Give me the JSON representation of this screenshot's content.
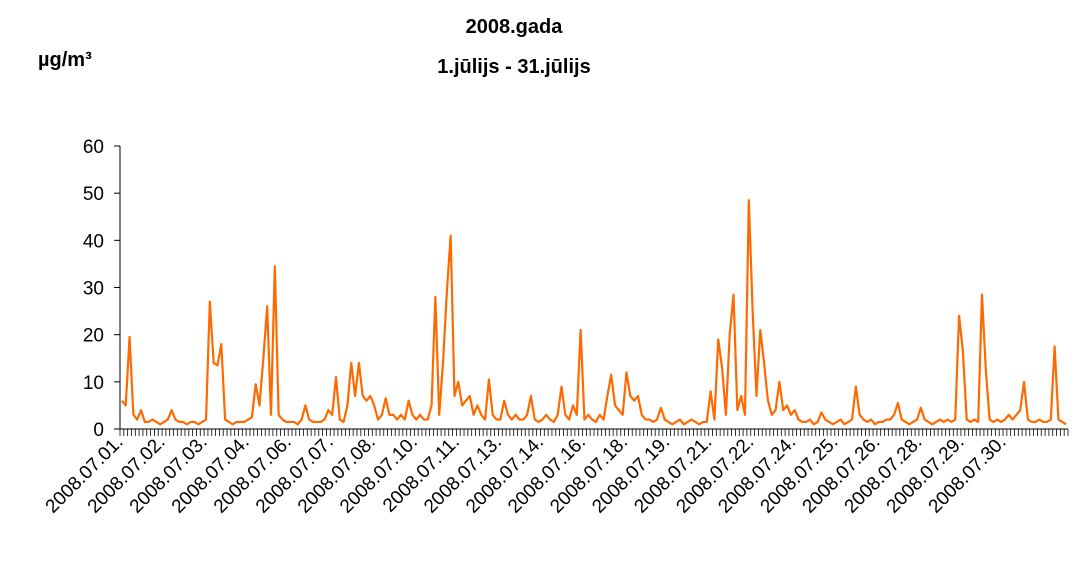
{
  "chart_data": {
    "type": "line",
    "title": "2008.gada",
    "subtitle": "1.jūlijs - 31.jūlijs",
    "y_label": "µg/m³",
    "color": "#ff6a00",
    "ylim": [
      0,
      60
    ],
    "yticks": [
      0,
      10,
      20,
      30,
      40,
      50,
      60
    ],
    "grid": false,
    "categories": [
      "2008.07.01.",
      null,
      null,
      null,
      null,
      null,
      null,
      null,
      null,
      null,
      null,
      "2008.07.02.",
      null,
      null,
      null,
      null,
      null,
      null,
      null,
      null,
      null,
      null,
      "2008.07.03.",
      null,
      null,
      null,
      null,
      null,
      null,
      null,
      null,
      null,
      null,
      "2008.07.04.",
      null,
      null,
      null,
      null,
      null,
      null,
      null,
      null,
      null,
      null,
      "2008.07.06.",
      null,
      null,
      null,
      null,
      null,
      null,
      null,
      null,
      null,
      null,
      "2008.07.07.",
      null,
      null,
      null,
      null,
      null,
      null,
      null,
      null,
      null,
      null,
      "2008.07.08.",
      null,
      null,
      null,
      null,
      null,
      null,
      null,
      null,
      null,
      null,
      "2008.07.10.",
      null,
      null,
      null,
      null,
      null,
      null,
      null,
      null,
      null,
      null,
      "2008.07.11.",
      null,
      null,
      null,
      null,
      null,
      null,
      null,
      null,
      null,
      null,
      "2008.07.13.",
      null,
      null,
      null,
      null,
      null,
      null,
      null,
      null,
      null,
      null,
      "2008.07.14.",
      null,
      null,
      null,
      null,
      null,
      null,
      null,
      null,
      null,
      null,
      "2008.07.16.",
      null,
      null,
      null,
      null,
      null,
      null,
      null,
      null,
      null,
      null,
      "2008.07.18.",
      null,
      null,
      null,
      null,
      null,
      null,
      null,
      null,
      null,
      null,
      "2008.07.19.",
      null,
      null,
      null,
      null,
      null,
      null,
      null,
      null,
      null,
      null,
      "2008.07.21.",
      null,
      null,
      null,
      null,
      null,
      null,
      null,
      null,
      null,
      null,
      "2008.07.22.",
      null,
      null,
      null,
      null,
      null,
      null,
      null,
      null,
      null,
      null,
      "2008.07.24.",
      null,
      null,
      null,
      null,
      null,
      null,
      null,
      null,
      null,
      null,
      "2008.07.25.",
      null,
      null,
      null,
      null,
      null,
      null,
      null,
      null,
      null,
      null,
      "2008.07.26.",
      null,
      null,
      null,
      null,
      null,
      null,
      null,
      null,
      null,
      null,
      "2008.07.28.",
      null,
      null,
      null,
      null,
      null,
      null,
      null,
      null,
      null,
      null,
      "2008.07.29.",
      null,
      null,
      null,
      null,
      null,
      null,
      null,
      null,
      null,
      null,
      "2008.07.30.",
      null,
      null,
      null,
      null,
      null,
      null,
      null,
      null,
      null,
      null,
      null,
      null,
      null,
      null,
      null,
      null
    ],
    "values": [
      6,
      5,
      19.5,
      3,
      2,
      4,
      1.5,
      1.5,
      2,
      1.5,
      1,
      1.5,
      2,
      4,
      2,
      1.5,
      1.5,
      1,
      1.5,
      1.5,
      1,
      1.5,
      2,
      27,
      14,
      13.5,
      18,
      2,
      1.5,
      1,
      1.5,
      1.5,
      1.5,
      2,
      2.5,
      9.5,
      5,
      15,
      26,
      3,
      34.5,
      3,
      2,
      1.5,
      1.5,
      1.5,
      1,
      2,
      5,
      2,
      1.5,
      1.5,
      1.5,
      2,
      4,
      3,
      11,
      2,
      1.5,
      5,
      14,
      7,
      14,
      7,
      6,
      7,
      5,
      2,
      3,
      6.5,
      3,
      3,
      2,
      3,
      2,
      6,
      3,
      2,
      3,
      2,
      2,
      5,
      28,
      3,
      14,
      29,
      41,
      7,
      10,
      5,
      6,
      7,
      3,
      5,
      3,
      2,
      10.5,
      3,
      2,
      2,
      6,
      3,
      2,
      3,
      2,
      2,
      3,
      7,
      2,
      1.5,
      2,
      3,
      2,
      1.5,
      3,
      9,
      3,
      2,
      5,
      3,
      21,
      2,
      3,
      2,
      1.5,
      3,
      2,
      7,
      11.5,
      5,
      4,
      3,
      12,
      7,
      6,
      7,
      3,
      2,
      2,
      1.5,
      2,
      4.5,
      2,
      1.5,
      1,
      1.5,
      2,
      1,
      1.5,
      2,
      1.5,
      1,
      1.5,
      1.5,
      8,
      2,
      19,
      13,
      3,
      20,
      28.5,
      4,
      7,
      3,
      48.5,
      25,
      7,
      21,
      14,
      6,
      3,
      4,
      10,
      4,
      5,
      3,
      4,
      2,
      1.5,
      1.5,
      2,
      1,
      1.5,
      3.5,
      2,
      1.5,
      1,
      1.5,
      2,
      1,
      1.5,
      2,
      9,
      3,
      2,
      1.5,
      2,
      1,
      1.5,
      1.5,
      2,
      2,
      3,
      5.5,
      2,
      1.5,
      1,
      1.5,
      2,
      4.5,
      2,
      1.5,
      1,
      1.5,
      2,
      1.5,
      2,
      1.5,
      2,
      24,
      16.5,
      2,
      1.5,
      2,
      1.5,
      28.5,
      12.5,
      2,
      1.5,
      2,
      1.5,
      2,
      3,
      2,
      3,
      4,
      10,
      2,
      1.5,
      1.5,
      2,
      1.5,
      1.5,
      2,
      17.5,
      2,
      1.5,
      1
    ]
  }
}
